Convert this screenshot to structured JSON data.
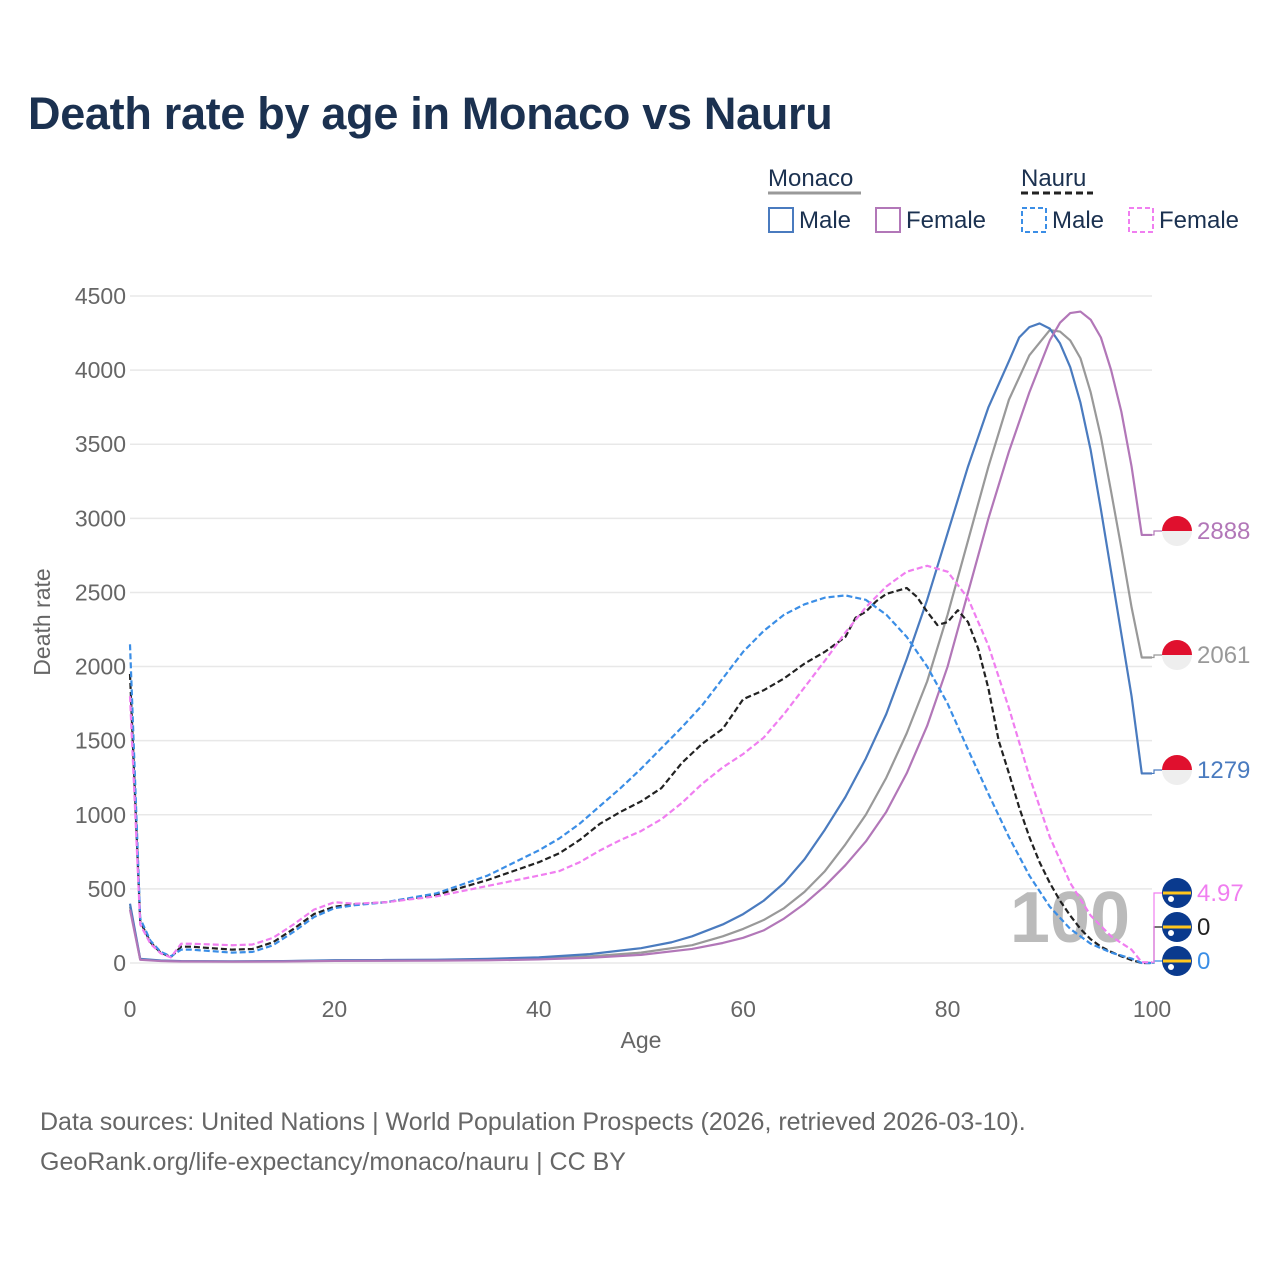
{
  "title": "Death rate by age in Monaco vs Nauru",
  "footer": {
    "line1": "Data sources: United Nations | World Population Prospects (2026, retrieved 2026-03-10).",
    "line2": "GeoRank.org/life-expectancy/monaco/nauru | CC BY"
  },
  "colors": {
    "monaco_male": "#4a7bbf",
    "monaco_female": "#b277b8",
    "monaco_total": "#999999",
    "nauru_male": "#3b8ee6",
    "nauru_female": "#f07ef0",
    "nauru_total": "#222222",
    "grid": "#e8e8e8",
    "axis_text": "#666666",
    "monaco_flag_red": "#e0102e",
    "nauru_flag_blue": "#0a3a8e",
    "nauru_flag_yellow": "#ffc61e"
  },
  "legend": {
    "groups": [
      {
        "name": "Monaco",
        "items": [
          "Male",
          "Female"
        ]
      },
      {
        "name": "Nauru",
        "items": [
          "Male",
          "Female"
        ]
      }
    ]
  },
  "watermark": "100",
  "chart_data": {
    "type": "line",
    "title": "Death rate by age in Monaco vs Nauru",
    "xlabel": "Age",
    "ylabel": "Death rate",
    "xlim": [
      0,
      100
    ],
    "ylim": [
      0,
      4500
    ],
    "xticks": [
      0,
      20,
      40,
      60,
      80,
      100
    ],
    "yticks": [
      0,
      500,
      1000,
      1500,
      2000,
      2500,
      3000,
      3500,
      4000,
      4500
    ],
    "series": [
      {
        "name": "Monaco Total",
        "country": "Monaco",
        "key": "monaco_total",
        "dash": false,
        "points": [
          [
            0,
            380
          ],
          [
            1,
            25
          ],
          [
            3,
            15
          ],
          [
            5,
            12
          ],
          [
            10,
            10
          ],
          [
            15,
            12
          ],
          [
            20,
            17
          ],
          [
            25,
            17
          ],
          [
            30,
            18
          ],
          [
            35,
            22
          ],
          [
            40,
            30
          ],
          [
            45,
            45
          ],
          [
            50,
            70
          ],
          [
            55,
            120
          ],
          [
            58,
            180
          ],
          [
            60,
            230
          ],
          [
            62,
            290
          ],
          [
            64,
            370
          ],
          [
            66,
            480
          ],
          [
            68,
            620
          ],
          [
            70,
            800
          ],
          [
            72,
            1000
          ],
          [
            74,
            1250
          ],
          [
            76,
            1550
          ],
          [
            78,
            1900
          ],
          [
            80,
            2350
          ],
          [
            82,
            2850
          ],
          [
            84,
            3350
          ],
          [
            86,
            3800
          ],
          [
            88,
            4100
          ],
          [
            90,
            4270
          ],
          [
            91,
            4260
          ],
          [
            92,
            4200
          ],
          [
            93,
            4080
          ],
          [
            94,
            3850
          ],
          [
            95,
            3550
          ],
          [
            96,
            3180
          ],
          [
            97,
            2800
          ],
          [
            98,
            2400
          ],
          [
            99,
            2061
          ]
        ],
        "end": 2061,
        "end_label": "2061"
      },
      {
        "name": "Monaco Male",
        "country": "Monaco",
        "key": "monaco_male",
        "dash": false,
        "points": [
          [
            0,
            400
          ],
          [
            1,
            28
          ],
          [
            3,
            17
          ],
          [
            5,
            13
          ],
          [
            10,
            11
          ],
          [
            15,
            13
          ],
          [
            20,
            19
          ],
          [
            25,
            20
          ],
          [
            30,
            22
          ],
          [
            35,
            28
          ],
          [
            40,
            38
          ],
          [
            45,
            60
          ],
          [
            50,
            100
          ],
          [
            53,
            140
          ],
          [
            55,
            180
          ],
          [
            58,
            260
          ],
          [
            60,
            330
          ],
          [
            62,
            420
          ],
          [
            64,
            540
          ],
          [
            66,
            700
          ],
          [
            68,
            900
          ],
          [
            70,
            1120
          ],
          [
            72,
            1380
          ],
          [
            74,
            1680
          ],
          [
            76,
            2050
          ],
          [
            78,
            2450
          ],
          [
            80,
            2900
          ],
          [
            82,
            3350
          ],
          [
            84,
            3750
          ],
          [
            86,
            4060
          ],
          [
            87,
            4220
          ],
          [
            88,
            4290
          ],
          [
            89,
            4315
          ],
          [
            90,
            4280
          ],
          [
            91,
            4180
          ],
          [
            92,
            4020
          ],
          [
            93,
            3780
          ],
          [
            94,
            3460
          ],
          [
            95,
            3060
          ],
          [
            96,
            2640
          ],
          [
            97,
            2220
          ],
          [
            98,
            1800
          ],
          [
            99,
            1279
          ]
        ],
        "end": 1279,
        "end_label": "1279"
      },
      {
        "name": "Monaco Female",
        "country": "Monaco",
        "key": "monaco_female",
        "dash": false,
        "points": [
          [
            0,
            360
          ],
          [
            1,
            22
          ],
          [
            3,
            13
          ],
          [
            5,
            10
          ],
          [
            10,
            9
          ],
          [
            15,
            10
          ],
          [
            20,
            14
          ],
          [
            25,
            15
          ],
          [
            30,
            16
          ],
          [
            35,
            18
          ],
          [
            40,
            24
          ],
          [
            45,
            35
          ],
          [
            50,
            55
          ],
          [
            55,
            95
          ],
          [
            58,
            135
          ],
          [
            60,
            170
          ],
          [
            62,
            220
          ],
          [
            64,
            300
          ],
          [
            66,
            400
          ],
          [
            68,
            520
          ],
          [
            70,
            660
          ],
          [
            72,
            820
          ],
          [
            74,
            1020
          ],
          [
            76,
            1280
          ],
          [
            78,
            1600
          ],
          [
            80,
            2000
          ],
          [
            82,
            2500
          ],
          [
            84,
            3000
          ],
          [
            86,
            3450
          ],
          [
            88,
            3850
          ],
          [
            90,
            4200
          ],
          [
            91,
            4320
          ],
          [
            92,
            4385
          ],
          [
            93,
            4395
          ],
          [
            94,
            4340
          ],
          [
            95,
            4220
          ],
          [
            96,
            4000
          ],
          [
            97,
            3720
          ],
          [
            98,
            3350
          ],
          [
            99,
            2888
          ]
        ],
        "end": 2888,
        "end_label": "2888"
      },
      {
        "name": "Nauru Total",
        "country": "Nauru",
        "key": "nauru_total",
        "dash": true,
        "points": [
          [
            0,
            1950
          ],
          [
            1,
            280
          ],
          [
            2,
            140
          ],
          [
            3,
            70
          ],
          [
            4,
            40
          ],
          [
            5,
            110
          ],
          [
            6,
            110
          ],
          [
            8,
            100
          ],
          [
            10,
            90
          ],
          [
            12,
            95
          ],
          [
            14,
            140
          ],
          [
            16,
            230
          ],
          [
            18,
            330
          ],
          [
            20,
            380
          ],
          [
            22,
            395
          ],
          [
            25,
            410
          ],
          [
            30,
            460
          ],
          [
            35,
            560
          ],
          [
            40,
            680
          ],
          [
            42,
            740
          ],
          [
            44,
            830
          ],
          [
            46,
            940
          ],
          [
            48,
            1020
          ],
          [
            50,
            1090
          ],
          [
            52,
            1180
          ],
          [
            54,
            1350
          ],
          [
            56,
            1480
          ],
          [
            58,
            1580
          ],
          [
            60,
            1780
          ],
          [
            62,
            1840
          ],
          [
            64,
            1920
          ],
          [
            66,
            2020
          ],
          [
            68,
            2100
          ],
          [
            70,
            2200
          ],
          [
            71,
            2330
          ],
          [
            72,
            2370
          ],
          [
            73,
            2440
          ],
          [
            74,
            2490
          ],
          [
            75,
            2510
          ],
          [
            76,
            2530
          ],
          [
            77,
            2470
          ],
          [
            78,
            2370
          ],
          [
            79,
            2280
          ],
          [
            80,
            2300
          ],
          [
            81,
            2380
          ],
          [
            82,
            2300
          ],
          [
            83,
            2120
          ],
          [
            84,
            1850
          ],
          [
            85,
            1500
          ],
          [
            86,
            1280
          ],
          [
            87,
            1050
          ],
          [
            88,
            850
          ],
          [
            89,
            680
          ],
          [
            90,
            540
          ],
          [
            91,
            420
          ],
          [
            92,
            320
          ],
          [
            93,
            230
          ],
          [
            94,
            160
          ],
          [
            95,
            110
          ],
          [
            96,
            75
          ],
          [
            97,
            45
          ],
          [
            98,
            20
          ],
          [
            99,
            0
          ]
        ],
        "end": 0,
        "end_label": "0"
      },
      {
        "name": "Nauru Male",
        "country": "Nauru",
        "key": "nauru_male",
        "dash": true,
        "points": [
          [
            0,
            2150
          ],
          [
            1,
            300
          ],
          [
            2,
            150
          ],
          [
            3,
            75
          ],
          [
            4,
            45
          ],
          [
            5,
            90
          ],
          [
            6,
            90
          ],
          [
            8,
            80
          ],
          [
            10,
            70
          ],
          [
            12,
            75
          ],
          [
            14,
            120
          ],
          [
            16,
            210
          ],
          [
            18,
            310
          ],
          [
            20,
            370
          ],
          [
            22,
            390
          ],
          [
            25,
            410
          ],
          [
            30,
            470
          ],
          [
            35,
            590
          ],
          [
            40,
            760
          ],
          [
            42,
            840
          ],
          [
            44,
            940
          ],
          [
            46,
            1060
          ],
          [
            48,
            1180
          ],
          [
            50,
            1310
          ],
          [
            52,
            1450
          ],
          [
            54,
            1590
          ],
          [
            56,
            1740
          ],
          [
            58,
            1920
          ],
          [
            60,
            2100
          ],
          [
            62,
            2240
          ],
          [
            64,
            2350
          ],
          [
            66,
            2420
          ],
          [
            68,
            2465
          ],
          [
            70,
            2480
          ],
          [
            72,
            2450
          ],
          [
            74,
            2350
          ],
          [
            76,
            2200
          ],
          [
            78,
            2000
          ],
          [
            80,
            1750
          ],
          [
            82,
            1440
          ],
          [
            84,
            1140
          ],
          [
            86,
            850
          ],
          [
            88,
            590
          ],
          [
            90,
            380
          ],
          [
            92,
            230
          ],
          [
            94,
            130
          ],
          [
            96,
            70
          ],
          [
            98,
            30
          ],
          [
            99,
            0
          ]
        ],
        "end": 0,
        "end_label": "0"
      },
      {
        "name": "Nauru Female",
        "country": "Nauru",
        "key": "nauru_female",
        "dash": true,
        "points": [
          [
            0,
            1800
          ],
          [
            1,
            260
          ],
          [
            2,
            130
          ],
          [
            3,
            65
          ],
          [
            4,
            38
          ],
          [
            5,
            130
          ],
          [
            6,
            130
          ],
          [
            8,
            125
          ],
          [
            10,
            120
          ],
          [
            12,
            125
          ],
          [
            14,
            170
          ],
          [
            16,
            260
          ],
          [
            18,
            360
          ],
          [
            20,
            410
          ],
          [
            22,
            400
          ],
          [
            25,
            410
          ],
          [
            30,
            450
          ],
          [
            35,
            520
          ],
          [
            40,
            590
          ],
          [
            42,
            620
          ],
          [
            44,
            680
          ],
          [
            46,
            760
          ],
          [
            48,
            830
          ],
          [
            50,
            890
          ],
          [
            52,
            970
          ],
          [
            54,
            1080
          ],
          [
            56,
            1210
          ],
          [
            58,
            1320
          ],
          [
            60,
            1410
          ],
          [
            62,
            1520
          ],
          [
            64,
            1680
          ],
          [
            66,
            1860
          ],
          [
            68,
            2040
          ],
          [
            70,
            2230
          ],
          [
            72,
            2400
          ],
          [
            74,
            2540
          ],
          [
            76,
            2640
          ],
          [
            78,
            2680
          ],
          [
            80,
            2640
          ],
          [
            82,
            2460
          ],
          [
            84,
            2140
          ],
          [
            86,
            1720
          ],
          [
            88,
            1260
          ],
          [
            90,
            850
          ],
          [
            92,
            540
          ],
          [
            94,
            320
          ],
          [
            96,
            180
          ],
          [
            98,
            90
          ],
          [
            99,
            4.97
          ]
        ],
        "end": 4.97,
        "end_label": "4.97"
      }
    ]
  }
}
